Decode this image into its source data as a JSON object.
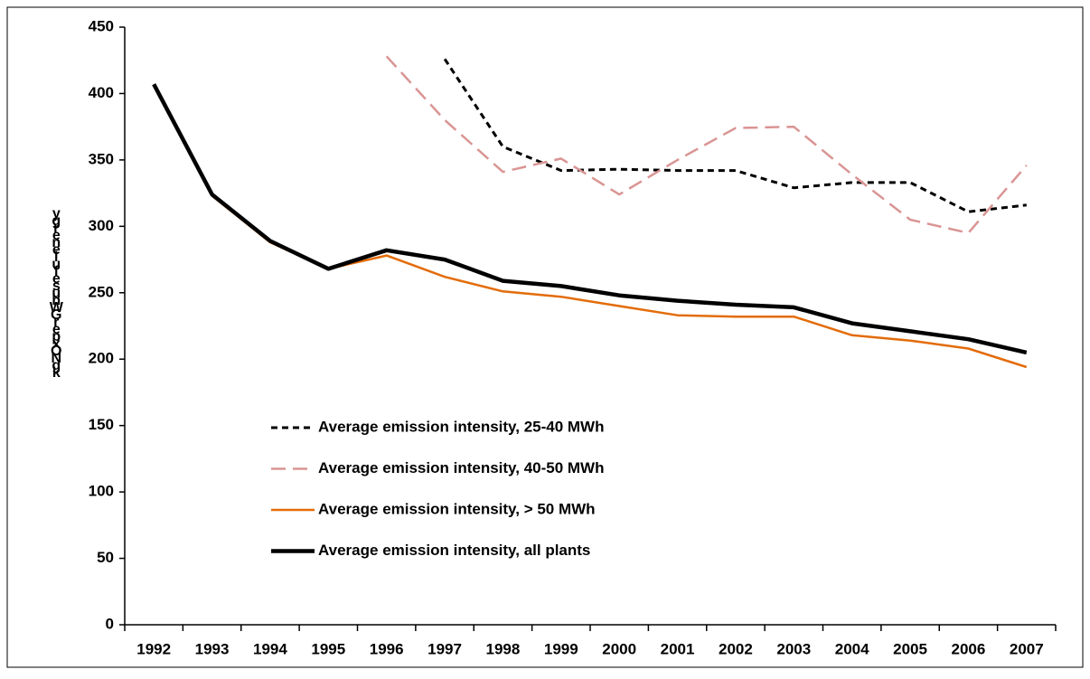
{
  "chart_data": {
    "type": "line",
    "y_label": "ygrenelufesuhWGrepxONgk",
    "categories": [
      "1992",
      "1993",
      "1994",
      "1995",
      "1996",
      "1997",
      "1998",
      "1999",
      "2000",
      "2001",
      "2002",
      "2003",
      "2004",
      "2005",
      "2006",
      "2007"
    ],
    "series": [
      {
        "name": "Average emission intensity, 25-40 MWh",
        "color": "#000000",
        "dash": true,
        "width": 3,
        "values": [
          null,
          null,
          null,
          null,
          null,
          426,
          360,
          342,
          343,
          342,
          342,
          329,
          333,
          333,
          311,
          316
        ]
      },
      {
        "name": "Average emission intensity, 40-50 MWh",
        "color": "#d99594",
        "dash": true,
        "width": 2.5,
        "values": [
          null,
          null,
          null,
          null,
          428,
          380,
          341,
          351,
          324,
          350,
          374,
          375,
          339,
          305,
          295,
          346
        ]
      },
      {
        "name": "Average emission intensity, > 50 MWh",
        "color": "#e36c0a",
        "dash": false,
        "width": 2.5,
        "values": [
          407,
          323,
          288,
          268,
          278,
          262,
          251,
          247,
          240,
          233,
          232,
          232,
          218,
          214,
          208,
          194
        ]
      },
      {
        "name": "Average emission intensity, all plants",
        "color": "#000000",
        "dash": false,
        "width": 4.5,
        "values": [
          407,
          324,
          289,
          268,
          282,
          275,
          259,
          255,
          248,
          244,
          241,
          239,
          227,
          221,
          215,
          205
        ]
      }
    ],
    "ylim": [
      0,
      450
    ],
    "yticks": [
      0,
      50,
      100,
      150,
      200,
      250,
      300,
      350,
      400,
      450
    ]
  }
}
